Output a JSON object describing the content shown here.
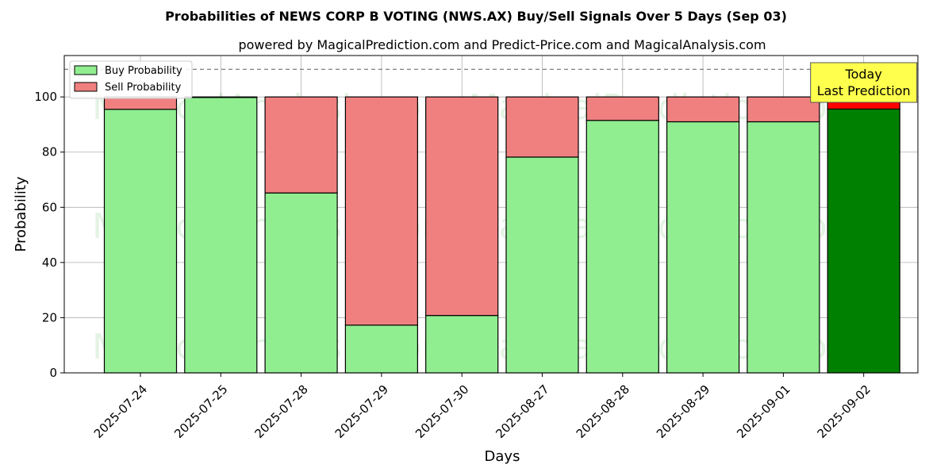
{
  "chart_data": {
    "type": "bar",
    "title": "Probabilities of NEWS CORP B VOTING (NWS.AX) Buy/Sell Signals Over 5 Days (Sep 03)",
    "subtitle": "powered by MagicalPrediction.com and Predict-Price.com and MagicalAnalysis.com",
    "xlabel": "Days",
    "ylabel": "Probability",
    "ylim": [
      0,
      115
    ],
    "yticks": [
      0,
      20,
      40,
      60,
      80,
      100
    ],
    "grid": true,
    "stacked": true,
    "legend_position": "top-left",
    "categories": [
      "2025-07-24",
      "2025-07-25",
      "2025-07-28",
      "2025-07-29",
      "2025-07-30",
      "2025-08-27",
      "2025-08-28",
      "2025-08-29",
      "2025-09-01",
      "2025-09-02"
    ],
    "series": [
      {
        "name": "Buy Probability",
        "values": [
          95.5,
          99.8,
          65.2,
          17.3,
          20.8,
          78.2,
          91.5,
          91.0,
          91.0,
          95.6
        ],
        "color": "#90ee90",
        "highlight_color": "#008000"
      },
      {
        "name": "Sell Probability",
        "values": [
          4.5,
          0.2,
          34.8,
          82.7,
          79.2,
          21.8,
          8.5,
          9.0,
          9.0,
          4.4
        ],
        "color": "#f08080",
        "highlight_color": "#ff0000"
      }
    ],
    "highlight_index": 9,
    "reference_line": {
      "y": 110,
      "style": "dashed",
      "color": "#808080"
    },
    "annotation": {
      "line1": "Today",
      "line2": "Last Prediction",
      "background": "#ffff4d"
    },
    "watermarks": [
      "MagicalAnalysis.com",
      "MagicalPrediction.com"
    ]
  }
}
